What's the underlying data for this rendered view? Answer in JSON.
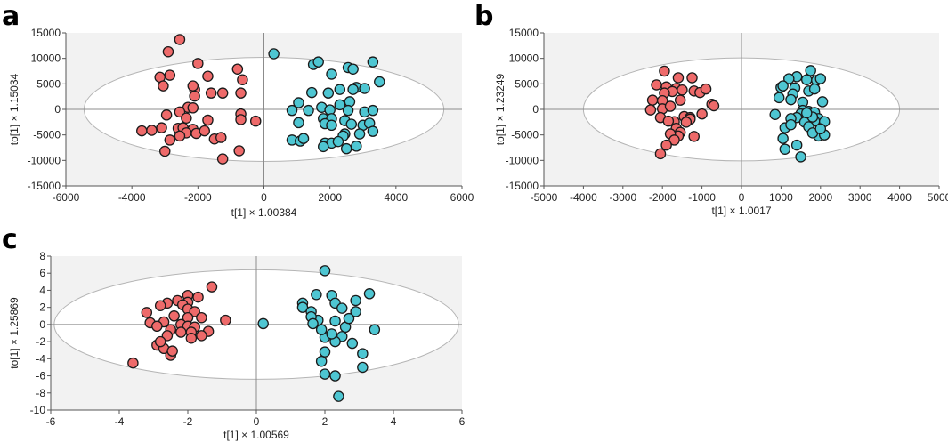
{
  "chart_data": [
    {
      "panel": "a",
      "type": "scatter",
      "xlabel": "t[1] × 1.00384",
      "ylabel": "to[1] × 1.15034",
      "xlim": [
        -6000,
        6000
      ],
      "ylim": [
        -15000,
        15000
      ],
      "xticks": [
        -6000,
        -4000,
        -2000,
        0,
        2000,
        4000,
        6000
      ],
      "yticks": [
        15000,
        10000,
        5000,
        0,
        -5000,
        -10000,
        -15000
      ],
      "xtick_labels": [
        "-6000",
        "-4000",
        "-2000",
        "0",
        "2000",
        "4000",
        "6000"
      ],
      "ytick_labels": [
        "15000",
        "10000",
        "5000",
        "0",
        "-5000",
        "-10000",
        "-15000"
      ],
      "ellipse": {
        "rx": 5450,
        "ry": 10200
      },
      "series": [
        {
          "name": "group-red",
          "color": "#ee6a6a",
          "points": [
            [
              -2550,
              13700
            ],
            [
              -2900,
              11300
            ],
            [
              -2000,
              9000
            ],
            [
              -2850,
              6700
            ],
            [
              -3150,
              6300
            ],
            [
              -3050,
              4600
            ],
            [
              -1700,
              6500
            ],
            [
              -2100,
              3900
            ],
            [
              -2100,
              2600
            ],
            [
              -2150,
              4600
            ],
            [
              -1600,
              3200
            ],
            [
              -1250,
              3200
            ],
            [
              -800,
              7900
            ],
            [
              -650,
              5800
            ],
            [
              -700,
              3200
            ],
            [
              -2300,
              400
            ],
            [
              -2150,
              300
            ],
            [
              -2550,
              -500
            ],
            [
              -2950,
              -1100
            ],
            [
              -2350,
              -1700
            ],
            [
              -1700,
              -2100
            ],
            [
              -700,
              -900
            ],
            [
              -700,
              -2000
            ],
            [
              -250,
              -2300
            ],
            [
              -3100,
              -3600
            ],
            [
              -2600,
              -3700
            ],
            [
              -2450,
              -3600
            ],
            [
              -2150,
              -3900
            ],
            [
              -2050,
              -4700
            ],
            [
              -1800,
              -4200
            ],
            [
              -2350,
              -4600
            ],
            [
              -2550,
              -5200
            ],
            [
              -2850,
              -6000
            ],
            [
              -1500,
              -5800
            ],
            [
              -1300,
              -5500
            ],
            [
              -3400,
              -4100
            ],
            [
              -3700,
              -4200
            ],
            [
              -3000,
              -8200
            ],
            [
              -1250,
              -9700
            ],
            [
              -750,
              -8100
            ]
          ]
        },
        {
          "name": "group-cyan",
          "color": "#4ec6d2",
          "points": [
            [
              300,
              10900
            ],
            [
              1500,
              8800
            ],
            [
              1650,
              9300
            ],
            [
              2550,
              8200
            ],
            [
              2700,
              7900
            ],
            [
              3300,
              9300
            ],
            [
              3500,
              5400
            ],
            [
              2800,
              4300
            ],
            [
              2050,
              6900
            ],
            [
              2300,
              3900
            ],
            [
              2700,
              3900
            ],
            [
              3050,
              4100
            ],
            [
              1450,
              3300
            ],
            [
              1950,
              3200
            ],
            [
              1050,
              1300
            ],
            [
              850,
              -200
            ],
            [
              1350,
              -200
            ],
            [
              1750,
              400
            ],
            [
              2000,
              -100
            ],
            [
              2300,
              900
            ],
            [
              2600,
              1500
            ],
            [
              2550,
              -200
            ],
            [
              3050,
              -500
            ],
            [
              3300,
              -200
            ],
            [
              1800,
              -1800
            ],
            [
              2050,
              -1800
            ],
            [
              1050,
              -2600
            ],
            [
              2450,
              -2200
            ],
            [
              2650,
              -2900
            ],
            [
              3000,
              -3100
            ],
            [
              3200,
              -2700
            ],
            [
              1850,
              -2800
            ],
            [
              2050,
              -3100
            ],
            [
              2450,
              -4800
            ],
            [
              2400,
              -5200
            ],
            [
              2900,
              -4800
            ],
            [
              3300,
              -4300
            ],
            [
              850,
              -6000
            ],
            [
              1100,
              -6200
            ],
            [
              1200,
              -5700
            ],
            [
              1850,
              -6600
            ],
            [
              2050,
              -6600
            ],
            [
              2250,
              -6300
            ],
            [
              1800,
              -7300
            ],
            [
              2500,
              -7700
            ],
            [
              2800,
              -7200
            ]
          ]
        }
      ]
    },
    {
      "panel": "b",
      "type": "scatter",
      "xlabel": "t[1] × 1.0017",
      "ylabel": "to[1] × 1.23249",
      "xlim": [
        -5000,
        5000
      ],
      "ylim": [
        -15000,
        15000
      ],
      "xticks": [
        -5000,
        -4000,
        -3000,
        -2000,
        -1000,
        0,
        1000,
        2000,
        3000,
        4000,
        5000
      ],
      "yticks": [
        15000,
        10000,
        5000,
        0,
        -5000,
        -10000,
        -15000
      ],
      "xtick_labels": [
        "-5000",
        "-4000",
        "-3000",
        "-2000",
        "-1000",
        "0",
        "1000",
        "2000",
        "3000",
        "4000",
        "5000"
      ],
      "ytick_labels": [
        "15000",
        "10000",
        "5000",
        "0",
        "-5000",
        "-10000",
        "-15000"
      ],
      "ellipse": {
        "rx": 4000,
        "ry": 10100
      },
      "series": [
        {
          "name": "group-red",
          "color": "#ee6a6a",
          "points": [
            [
              -1950,
              7500
            ],
            [
              -1600,
              6200
            ],
            [
              -1250,
              6200
            ],
            [
              -2150,
              4800
            ],
            [
              -1900,
              4400
            ],
            [
              -1650,
              4100
            ],
            [
              -1500,
              3800
            ],
            [
              -1750,
              3500
            ],
            [
              -1950,
              3200
            ],
            [
              -1200,
              3600
            ],
            [
              -1050,
              3300
            ],
            [
              -900,
              4000
            ],
            [
              -2250,
              1800
            ],
            [
              -2000,
              1700
            ],
            [
              -1550,
              1800
            ],
            [
              -2000,
              100
            ],
            [
              -1800,
              600
            ],
            [
              -2300,
              -100
            ],
            [
              -1450,
              -1400
            ],
            [
              -1300,
              -1600
            ],
            [
              -1000,
              -900
            ],
            [
              -750,
              1000
            ],
            [
              -700,
              700
            ],
            [
              -2050,
              -1600
            ],
            [
              -1700,
              -2400
            ],
            [
              -1850,
              -2300
            ],
            [
              -1650,
              -3700
            ],
            [
              -1550,
              -4500
            ],
            [
              -1600,
              -5200
            ],
            [
              -1800,
              -4800
            ],
            [
              -1200,
              -5300
            ],
            [
              -1700,
              -6000
            ],
            [
              -1900,
              -7000
            ],
            [
              -2050,
              -8700
            ],
            [
              -1300,
              -1900
            ],
            [
              -1400,
              -2500
            ]
          ]
        },
        {
          "name": "group-cyan",
          "color": "#4ec6d2",
          "points": [
            [
              1750,
              7600
            ],
            [
              1400,
              6400
            ],
            [
              1200,
              6000
            ],
            [
              1650,
              5800
            ],
            [
              1900,
              5700
            ],
            [
              2000,
              6000
            ],
            [
              1000,
              4300
            ],
            [
              1050,
              4600
            ],
            [
              1350,
              4200
            ],
            [
              1700,
              3600
            ],
            [
              1850,
              4000
            ],
            [
              1300,
              3000
            ],
            [
              950,
              2300
            ],
            [
              1250,
              1900
            ],
            [
              1550,
              1400
            ],
            [
              2050,
              1500
            ],
            [
              850,
              -1000
            ],
            [
              1550,
              -200
            ],
            [
              1700,
              -400
            ],
            [
              1850,
              -600
            ],
            [
              1500,
              -900
            ],
            [
              1400,
              -1600
            ],
            [
              1250,
              -1800
            ],
            [
              1950,
              -1800
            ],
            [
              1850,
              -2300
            ],
            [
              2100,
              -2400
            ],
            [
              1600,
              -2500
            ],
            [
              1700,
              -3400
            ],
            [
              1100,
              -3600
            ],
            [
              1950,
              -5200
            ],
            [
              2100,
              -5000
            ],
            [
              1800,
              -4600
            ],
            [
              1050,
              -5700
            ],
            [
              1400,
              -7000
            ],
            [
              1100,
              -7800
            ],
            [
              1500,
              -9300
            ],
            [
              1800,
              -1500
            ],
            [
              1650,
              -700
            ],
            [
              2000,
              -3800
            ],
            [
              1250,
              -3000
            ]
          ]
        }
      ]
    },
    {
      "panel": "c",
      "type": "scatter",
      "xlabel": "t[1] × 1.00569",
      "ylabel": "to[1] × 1.25869",
      "xlim": [
        -6,
        6
      ],
      "ylim": [
        -10,
        8
      ],
      "xticks": [
        -6,
        -4,
        -2,
        0,
        2,
        4,
        6
      ],
      "yticks": [
        8,
        6,
        4,
        2,
        0,
        -2,
        -4,
        -6,
        -8,
        -10
      ],
      "xtick_labels": [
        "-6",
        "-4",
        "-2",
        "0",
        "2",
        "4",
        "6"
      ],
      "ytick_labels": [
        "8",
        "6",
        "4",
        "2",
        "0",
        "-2",
        "-4",
        "-6",
        "-8",
        "-10"
      ],
      "ellipse": {
        "rx": 5.9,
        "ry": 6.4
      },
      "series": [
        {
          "name": "group-red",
          "color": "#ee6a6a",
          "points": [
            [
              -1.3,
              4.4
            ],
            [
              -2.0,
              3.4
            ],
            [
              -1.7,
              3.2
            ],
            [
              -2.3,
              2.8
            ],
            [
              -2.0,
              2.6
            ],
            [
              -2.6,
              2.5
            ],
            [
              -2.8,
              2.2
            ],
            [
              -2.15,
              2.3
            ],
            [
              -2.0,
              1.8
            ],
            [
              -1.8,
              1.5
            ],
            [
              -3.2,
              1.4
            ],
            [
              -2.4,
              1.0
            ],
            [
              -2.0,
              0.8
            ],
            [
              -1.6,
              0.8
            ],
            [
              -0.9,
              0.5
            ],
            [
              -3.1,
              0.2
            ],
            [
              -2.7,
              0.3
            ],
            [
              -2.2,
              0.0
            ],
            [
              -2.0,
              -0.2
            ],
            [
              -1.8,
              -0.3
            ],
            [
              -2.5,
              -0.6
            ],
            [
              -2.2,
              -0.9
            ],
            [
              -1.9,
              -0.9
            ],
            [
              -1.4,
              -0.8
            ],
            [
              -2.6,
              -1.3
            ],
            [
              -1.9,
              -1.6
            ],
            [
              -2.9,
              -2.4
            ],
            [
              -2.7,
              -2.8
            ],
            [
              -2.5,
              -3.6
            ],
            [
              -3.6,
              -4.5
            ],
            [
              -2.45,
              -3.1
            ],
            [
              -2.8,
              -2.0
            ],
            [
              -2.9,
              -0.2
            ],
            [
              -1.6,
              -1.3
            ]
          ]
        },
        {
          "name": "group-cyan",
          "color": "#4ec6d2",
          "points": [
            [
              0.2,
              0.1
            ],
            [
              2.0,
              6.3
            ],
            [
              1.75,
              3.5
            ],
            [
              2.2,
              3.4
            ],
            [
              2.9,
              2.8
            ],
            [
              3.3,
              3.6
            ],
            [
              1.35,
              2.5
            ],
            [
              2.3,
              2.5
            ],
            [
              1.35,
              2.0
            ],
            [
              1.6,
              1.5
            ],
            [
              2.5,
              1.9
            ],
            [
              2.9,
              1.5
            ],
            [
              1.8,
              0.5
            ],
            [
              2.3,
              0.4
            ],
            [
              2.6,
              -0.3
            ],
            [
              3.45,
              -0.6
            ],
            [
              1.6,
              0.9
            ],
            [
              2.7,
              0.7
            ],
            [
              2.5,
              -1.4
            ],
            [
              2.0,
              -1.5
            ],
            [
              2.3,
              -2.0
            ],
            [
              2.8,
              -2.2
            ],
            [
              3.1,
              -3.4
            ],
            [
              2.0,
              -3.2
            ],
            [
              1.9,
              -4.3
            ],
            [
              3.1,
              -5.0
            ],
            [
              2.0,
              -5.8
            ],
            [
              2.3,
              -6.0
            ],
            [
              2.4,
              -8.4
            ],
            [
              1.65,
              0.1
            ],
            [
              1.9,
              -0.6
            ],
            [
              2.2,
              -1.1
            ]
          ]
        }
      ]
    }
  ],
  "panels": {
    "a": {
      "letter": "a"
    },
    "b": {
      "letter": "b"
    },
    "c": {
      "letter": "c"
    }
  }
}
